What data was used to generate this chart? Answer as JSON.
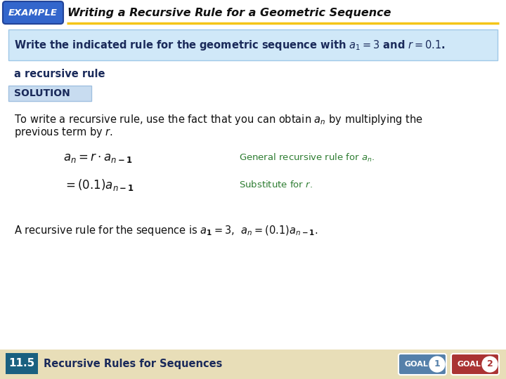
{
  "title": "Writing a Recursive Rule for a Geometric Sequence",
  "example_label": "EXAMPLE",
  "example_bg": "#3366CC",
  "example_text_color": "#FFFFFF",
  "title_color": "#111111",
  "yellow_line_color": "#F5C518",
  "problem_box_bg": "#D0E8F8",
  "problem_box_border": "#A0C8E8",
  "recursive_label": "a recursive rule",
  "solution_box_bg": "#C8DCF0",
  "solution_box_border": "#A0C0E0",
  "solution_label": "SOLUTION",
  "annotation_color": "#2E7D32",
  "footer_bg": "#E8DEB8",
  "footer_num_bg": "#1A6080",
  "footer_num_text": "11.5",
  "footer_text": "Recursive Rules for Sequences",
  "goal1_bg": "#5580AA",
  "goal2_bg": "#AA3333",
  "bg_color": "#FFFFFF",
  "dark_navy": "#1a2a5a",
  "body_color": "#111111"
}
